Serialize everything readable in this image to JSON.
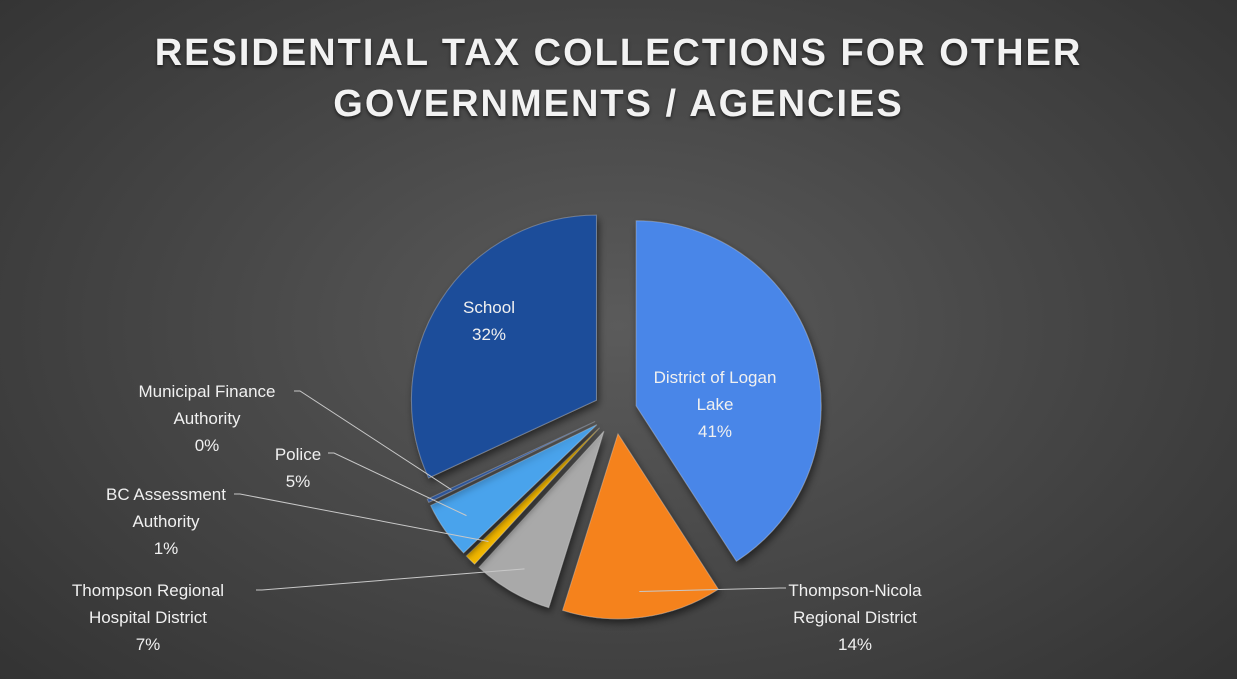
{
  "chart_data": {
    "type": "pie",
    "title_lines": [
      "RESIDENTIAL TAX COLLECTIONS FOR OTHER",
      "GOVERNMENTS / AGENCIES"
    ],
    "slices": [
      {
        "key": "logan",
        "label_lines": [
          "District of Logan",
          "Lake"
        ],
        "percent_text": "41%",
        "value": 41,
        "color": "#4a86e8"
      },
      {
        "key": "tnrd",
        "label_lines": [
          "Thompson-Nicola",
          "Regional District"
        ],
        "percent_text": "14%",
        "value": 14,
        "color": "#f5821f"
      },
      {
        "key": "hospital",
        "label_lines": [
          "Thompson Regional",
          "Hospital District"
        ],
        "percent_text": "7%",
        "value": 7,
        "color": "#a9a9a9"
      },
      {
        "key": "bca",
        "label_lines": [
          "BC Assessment",
          "Authority"
        ],
        "percent_text": "1%",
        "value": 1,
        "color": "#f2b705"
      },
      {
        "key": "police",
        "label_lines": [
          "Police"
        ],
        "percent_text": "5%",
        "value": 5,
        "color": "#4aa3ec"
      },
      {
        "key": "mfa",
        "label_lines": [
          "Municipal Finance",
          "Authority"
        ],
        "percent_text": "0%",
        "value": 0.3,
        "color": "#2f5496"
      },
      {
        "key": "school",
        "label_lines": [
          "School"
        ],
        "percent_text": "32%",
        "value": 32,
        "color": "#1f4e9a"
      }
    ],
    "legend": "none",
    "start_angle_deg": 0,
    "direction": "clockwise",
    "exploded": true
  }
}
